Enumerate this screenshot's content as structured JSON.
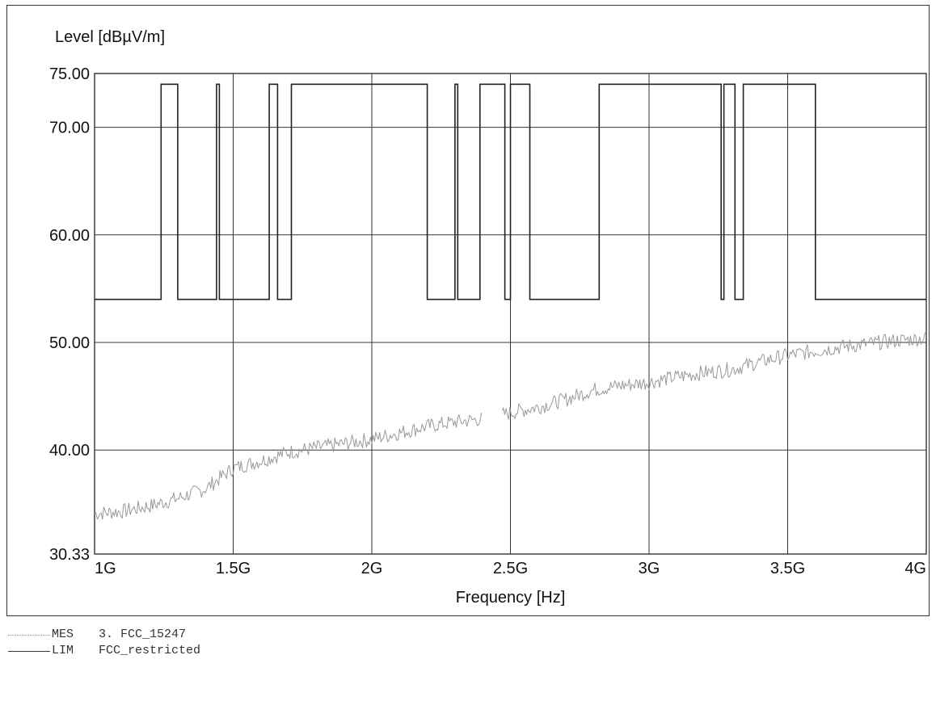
{
  "chart_data": {
    "type": "line",
    "ylabel": "Level [dBµV/m]",
    "xlabel": "Frequency [Hz]",
    "xlim": [
      1,
      4
    ],
    "ylim": [
      30.33,
      75
    ],
    "x_unit": "GHz",
    "y_ticks": [
      {
        "value": 75,
        "label": "75.00"
      },
      {
        "value": 70,
        "label": "70.00"
      },
      {
        "value": 60,
        "label": "60.00"
      },
      {
        "value": 50,
        "label": "50.00"
      },
      {
        "value": 40,
        "label": "40.00"
      },
      {
        "value": 30.33,
        "label": "30.33"
      }
    ],
    "x_ticks": [
      {
        "value": 1,
        "label": "1G"
      },
      {
        "value": 1.5,
        "label": "1.5G"
      },
      {
        "value": 2,
        "label": "2G"
      },
      {
        "value": 2.5,
        "label": "2.5G"
      },
      {
        "value": 3,
        "label": "3G"
      },
      {
        "value": 3.5,
        "label": "3.5G"
      },
      {
        "value": 4,
        "label": "4G"
      }
    ],
    "grid": true,
    "legend_placement": "bottom-left",
    "series": [
      {
        "name": "MES 3. FCC_15247",
        "style": "noisy-dotted",
        "color": "#999999",
        "x": [
          1.0,
          1.1,
          1.2,
          1.3,
          1.4,
          1.5,
          1.6,
          1.7,
          1.8,
          1.9,
          2.0,
          2.1,
          2.2,
          2.3,
          2.4,
          null,
          2.47,
          2.6,
          2.7,
          2.8,
          2.9,
          3.0,
          3.1,
          3.2,
          3.3,
          3.4,
          3.5,
          3.6,
          3.7,
          3.8,
          3.9,
          4.0
        ],
        "y": [
          34.1,
          34.3,
          34.8,
          35.5,
          36.4,
          38.3,
          39.0,
          39.8,
          40.2,
          40.6,
          41.0,
          41.6,
          42.2,
          42.6,
          42.9,
          null,
          43.3,
          44.0,
          44.7,
          45.6,
          46.0,
          46.3,
          46.8,
          47.2,
          47.5,
          48.2,
          48.8,
          49.2,
          49.6,
          49.9,
          50.2,
          50.4
        ]
      },
      {
        "name": "LIM FCC_restricted",
        "style": "step",
        "color": "#222222",
        "x": [
          1.0,
          1.24,
          1.24,
          1.3,
          1.3,
          1.44,
          1.44,
          1.45,
          1.45,
          1.63,
          1.63,
          1.66,
          1.66,
          1.71,
          1.71,
          2.2,
          2.2,
          2.3,
          2.3,
          2.31,
          2.31,
          2.39,
          2.39,
          2.48,
          2.48,
          2.5,
          2.5,
          2.57,
          2.57,
          2.82,
          2.82,
          3.26,
          3.26,
          3.27,
          3.27,
          3.31,
          3.31,
          3.34,
          3.34,
          3.6,
          3.6,
          4.0
        ],
        "y": [
          54,
          54,
          74,
          74,
          54,
          54,
          74,
          74,
          54,
          54,
          74,
          74,
          54,
          54,
          74,
          74,
          54,
          54,
          74,
          74,
          54,
          54,
          74,
          74,
          54,
          54,
          74,
          74,
          54,
          54,
          74,
          74,
          54,
          54,
          74,
          74,
          54,
          54,
          74,
          74,
          54,
          54
        ]
      }
    ]
  },
  "legend": [
    {
      "code": "MES",
      "text": "3. FCC_15247"
    },
    {
      "code": "LIM",
      "text": "FCC_restricted"
    }
  ]
}
